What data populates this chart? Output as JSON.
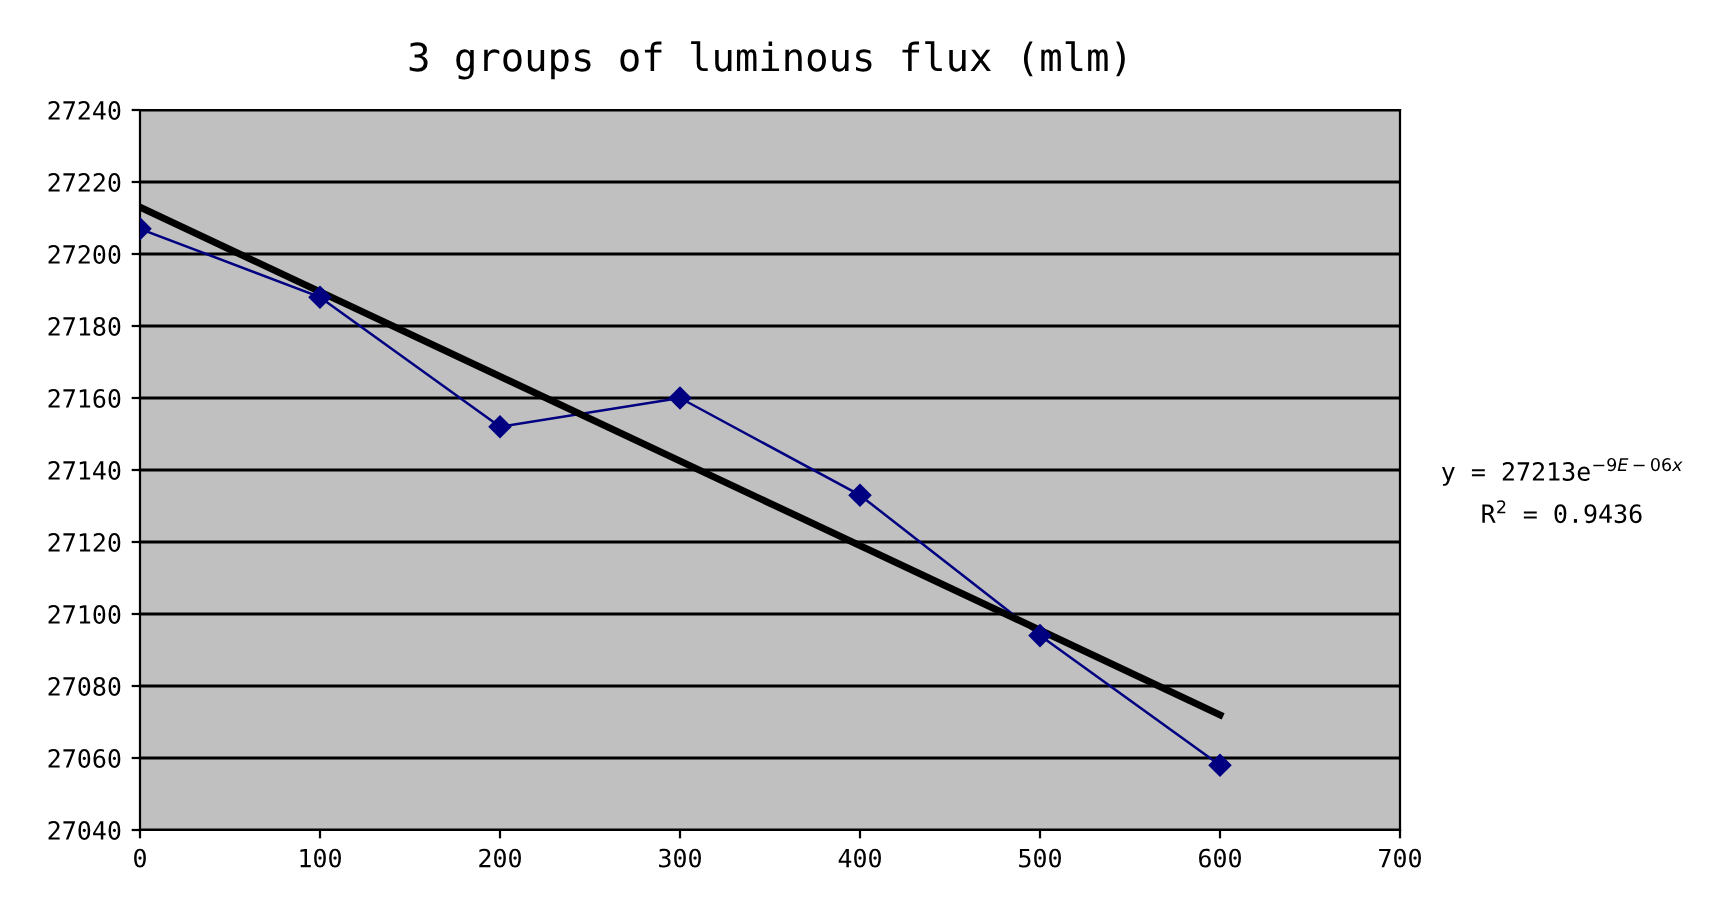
{
  "chart_data": {
    "type": "line",
    "title": "3 groups of luminous flux (mlm)",
    "x": [
      0,
      100,
      200,
      300,
      400,
      500,
      600
    ],
    "series": [
      {
        "color": "#000080",
        "values": [
          27207,
          27188,
          27152,
          27160,
          27133,
          27094,
          27058
        ],
        "marker": "diamond"
      },
      {
        "color": "#000000",
        "x": [
          0,
          600
        ],
        "values": [
          27213,
          27072
        ],
        "marker": "none"
      }
    ],
    "xlim": [
      0,
      700
    ],
    "xticks": [
      0,
      100,
      200,
      300,
      400,
      500,
      600,
      700
    ],
    "ylim": [
      27040,
      27240
    ],
    "yticks": [
      27040,
      27060,
      27080,
      27100,
      27120,
      27140,
      27160,
      27180,
      27200,
      27220,
      27240
    ],
    "grid": "y",
    "legend": false,
    "annotations": [
      "y = 27213e$^{−9E−06x}$",
      "R$^{2}$ = 0.9436"
    ]
  }
}
